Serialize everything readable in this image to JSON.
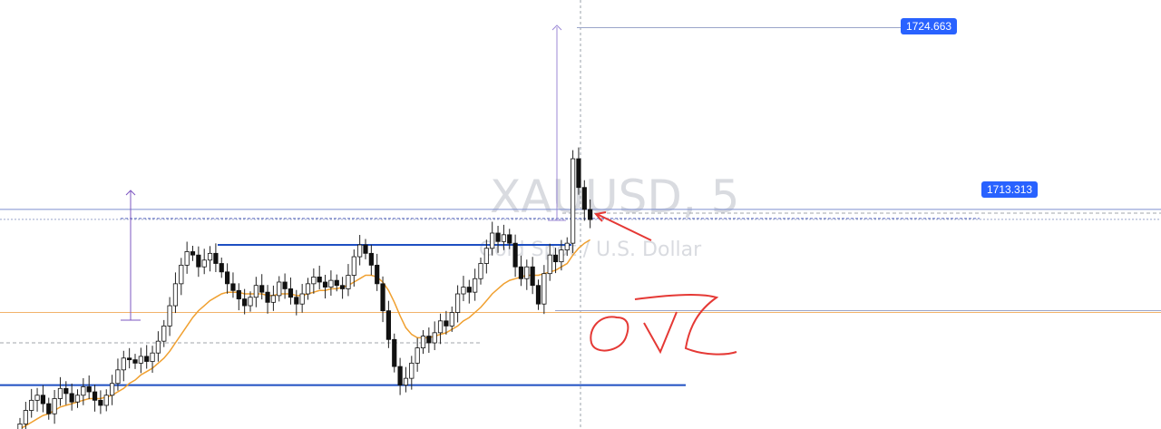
{
  "chart_data": {
    "type": "candlestick",
    "watermark": {
      "symbol": "XAUUSD, 5",
      "description": "Gold Spot / U.S. Dollar"
    },
    "price_labels": [
      "1724.663",
      "1713.313"
    ],
    "ylim": [
      1700.9,
      1726.3
    ],
    "levels": {
      "upper_resistance": 1713.9,
      "current_price": 1713.313,
      "range_top": 1711.8,
      "lower_support": 1703.5,
      "moving_average_ref": 1707.8,
      "measure_target": 1724.663,
      "lower_range_gray": 1711.0
    },
    "candles_x_range": [
      0,
      655
    ],
    "closes": [
      1701.2,
      1702.0,
      1702.6,
      1702.9,
      1702.4,
      1701.8,
      1702.7,
      1703.3,
      1703.0,
      1702.5,
      1702.9,
      1703.4,
      1703.1,
      1702.6,
      1702.3,
      1702.9,
      1703.6,
      1704.4,
      1705.1,
      1705.0,
      1704.8,
      1705.2,
      1704.9,
      1705.4,
      1706.1,
      1707.0,
      1708.2,
      1709.5,
      1710.6,
      1711.4,
      1711.2,
      1710.5,
      1710.9,
      1711.3,
      1710.7,
      1710.2,
      1709.5,
      1709.1,
      1708.6,
      1708.2,
      1708.7,
      1709.4,
      1709.0,
      1708.4,
      1708.8,
      1709.6,
      1709.2,
      1708.7,
      1708.3,
      1708.9,
      1709.5,
      1709.9,
      1709.6,
      1709.3,
      1709.7,
      1709.4,
      1709.2,
      1710.0,
      1711.1,
      1711.8,
      1711.3,
      1710.6,
      1709.5,
      1707.9,
      1706.2,
      1704.6,
      1703.5,
      1703.9,
      1704.8,
      1705.7,
      1706.4,
      1706.0,
      1706.6,
      1707.3,
      1707.0,
      1707.8,
      1708.9,
      1709.3,
      1709.0,
      1709.8,
      1710.7,
      1711.6,
      1712.5,
      1712.0,
      1712.4,
      1711.9,
      1710.5,
      1709.8,
      1710.5,
      1709.4,
      1708.3,
      1710.1,
      1711.2,
      1710.8,
      1711.5,
      1711.9,
      1716.9,
      1715.2,
      1713.9,
      1713.3
    ],
    "moving_average": [
      1700.9,
      1701.1,
      1701.3,
      1701.5,
      1701.7,
      1701.8,
      1702.0,
      1702.2,
      1702.3,
      1702.4,
      1702.5,
      1702.6,
      1702.7,
      1702.7,
      1702.7,
      1702.8,
      1702.9,
      1703.1,
      1703.3,
      1703.6,
      1703.8,
      1704.1,
      1704.3,
      1704.5,
      1704.8,
      1705.1,
      1705.5,
      1706.0,
      1706.5,
      1707.0,
      1707.5,
      1707.9,
      1708.2,
      1708.5,
      1708.7,
      1708.9,
      1709.0,
      1709.0,
      1709.0,
      1708.9,
      1708.9,
      1708.9,
      1708.9,
      1708.8,
      1708.8,
      1708.9,
      1708.9,
      1708.9,
      1708.8,
      1708.8,
      1708.9,
      1709.0,
      1709.1,
      1709.1,
      1709.2,
      1709.2,
      1709.3,
      1709.4,
      1709.6,
      1709.8,
      1710.0,
      1710.0,
      1709.9,
      1709.6,
      1709.1,
      1708.4,
      1707.6,
      1706.9,
      1706.5,
      1706.3,
      1706.3,
      1706.3,
      1706.4,
      1706.5,
      1706.6,
      1706.8,
      1707.0,
      1707.3,
      1707.5,
      1707.8,
      1708.1,
      1708.5,
      1708.9,
      1709.2,
      1709.5,
      1709.7,
      1709.8,
      1709.9,
      1710.0,
      1710.0,
      1710.0,
      1710.1,
      1710.2,
      1710.3,
      1710.5,
      1710.7,
      1711.2,
      1711.6,
      1711.9,
      1712.1
    ]
  },
  "annotation": {
    "handwriting": "OVZ",
    "arrow_color": "#e53935"
  }
}
